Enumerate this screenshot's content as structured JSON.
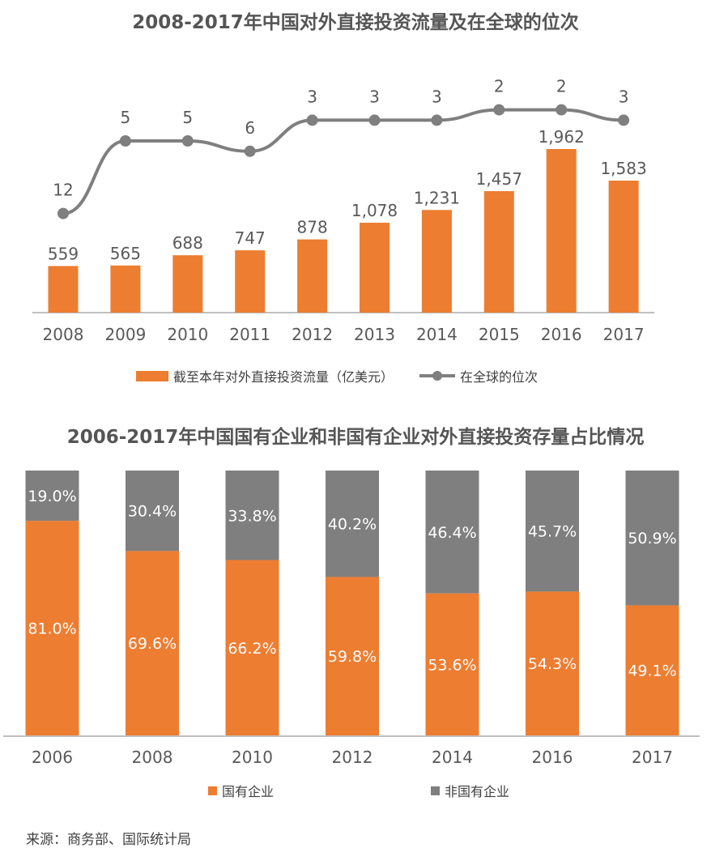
{
  "source": "来源：商务部、国际统计局",
  "colors": {
    "orange": "#ED7D31",
    "gray": "#7F7F7F",
    "text": "#595959",
    "axis": "#BFBFBF"
  },
  "chart_data": [
    {
      "type": "bar+line",
      "title": "2008-2017年中国对外直接投资流量及在全球的位次",
      "categories": [
        "2008",
        "2009",
        "2010",
        "2011",
        "2012",
        "2013",
        "2014",
        "2015",
        "2016",
        "2017"
      ],
      "series": [
        {
          "name": "截至本年对外直接投资流量（亿美元）",
          "kind": "bar",
          "values": [
            559,
            565,
            688,
            747,
            878,
            1078,
            1231,
            1457,
            1962,
            1583
          ],
          "labels": [
            "559",
            "565",
            "688",
            "747",
            "878",
            "1,078",
            "1,231",
            "1,457",
            "1,962",
            "1,583"
          ]
        },
        {
          "name": "在全球的位次",
          "kind": "line",
          "values": [
            12,
            5,
            5,
            6,
            3,
            3,
            3,
            2,
            2,
            3
          ],
          "labels": [
            "12",
            "5",
            "5",
            "6",
            "3",
            "3",
            "3",
            "2",
            "2",
            "3"
          ]
        }
      ],
      "legend": "bottom"
    },
    {
      "type": "stacked-bar-100",
      "title": "2006-2017年中国国有企业和非国有企业对外直接投资存量占比情况",
      "categories": [
        "2006",
        "2008",
        "2010",
        "2012",
        "2014",
        "2016",
        "2017"
      ],
      "series": [
        {
          "name": "国有企业",
          "values": [
            81.0,
            69.6,
            66.2,
            59.8,
            53.6,
            54.3,
            49.1
          ],
          "labels": [
            "81.0%",
            "69.6%",
            "66.2%",
            "59.8%",
            "53.6%",
            "54.3%",
            "49.1%"
          ]
        },
        {
          "name": "非国有企业",
          "values": [
            19.0,
            30.4,
            33.8,
            40.2,
            46.4,
            45.7,
            50.9
          ],
          "labels": [
            "19.0%",
            "30.4%",
            "33.8%",
            "40.2%",
            "46.4%",
            "45.7%",
            "50.9%"
          ]
        }
      ],
      "legend": "bottom"
    }
  ]
}
